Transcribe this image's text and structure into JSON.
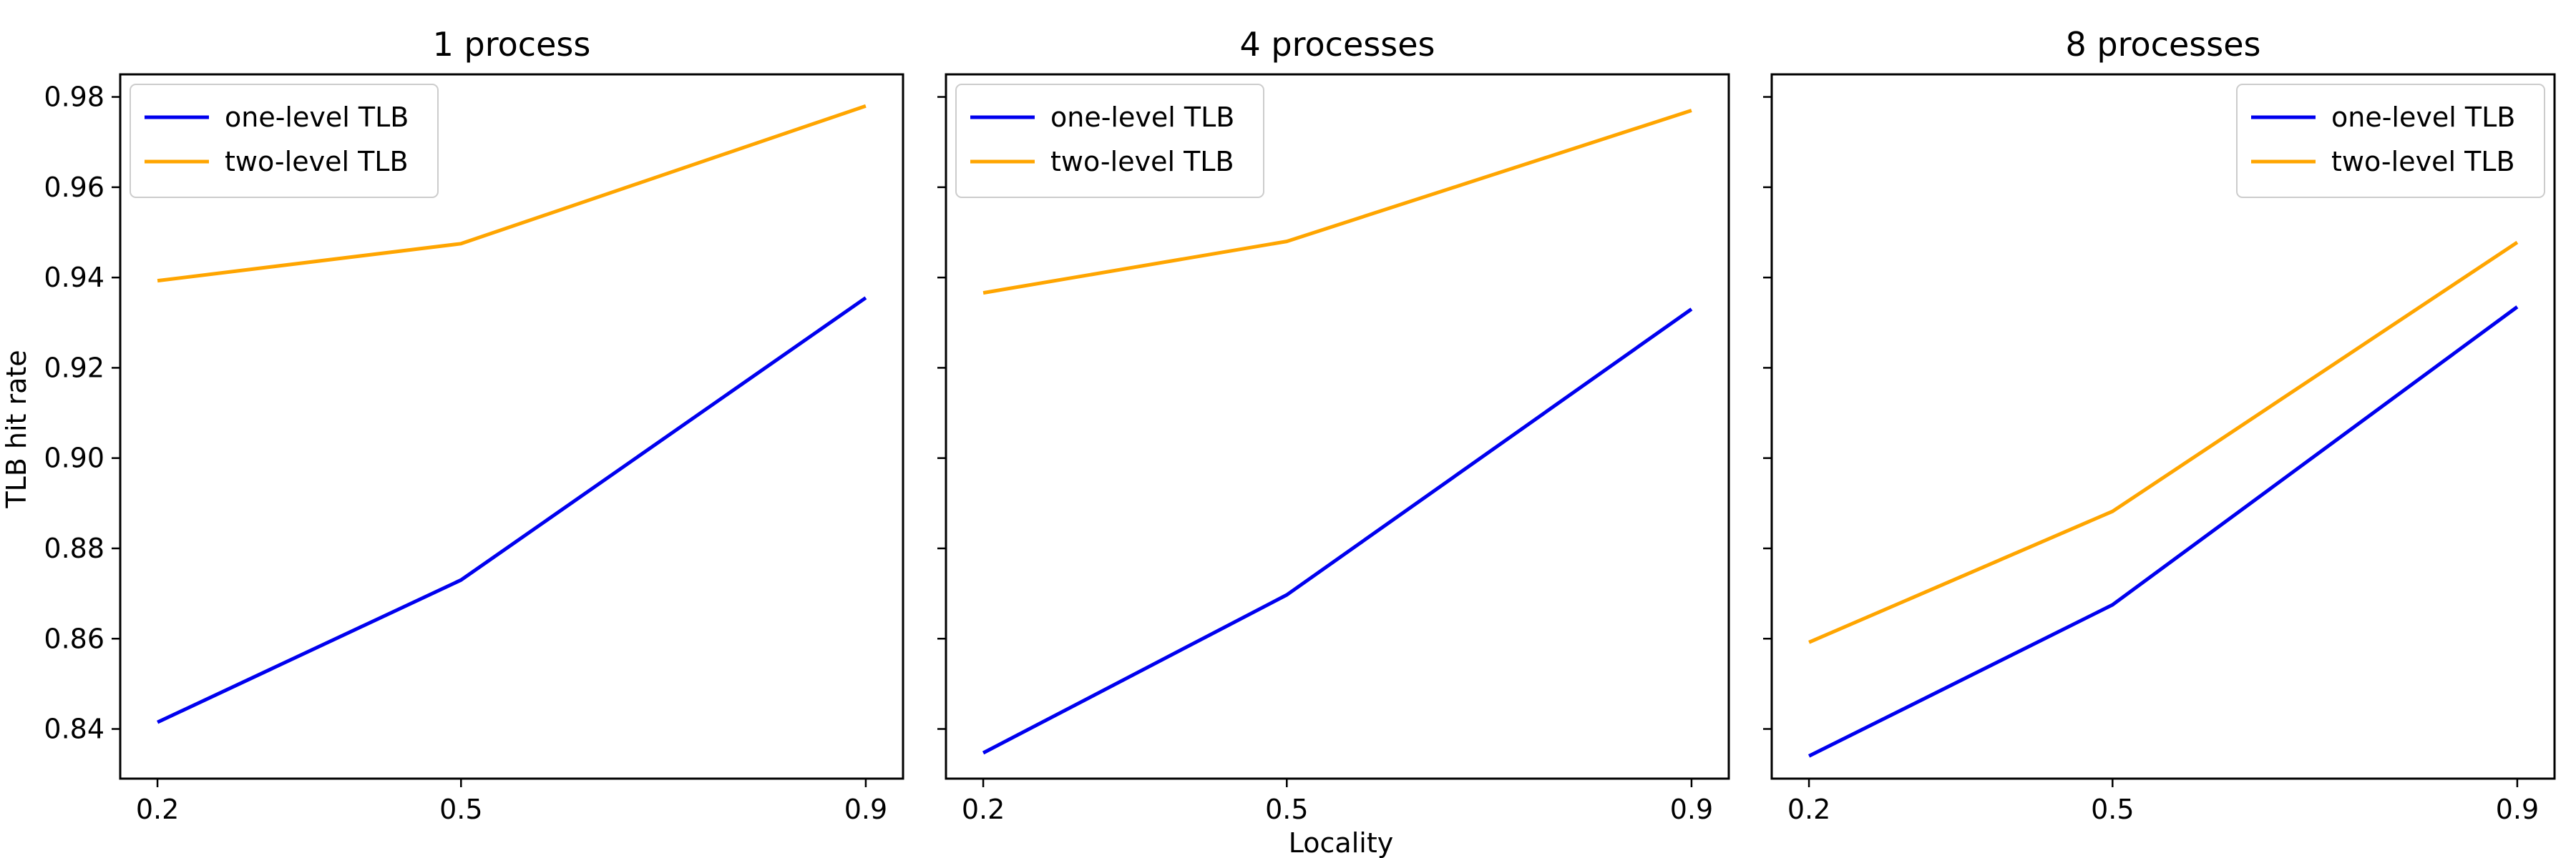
{
  "figure": {
    "ylabel": "TLB hit rate",
    "xlabel": "Locality"
  },
  "colors": {
    "one_level": "#0000ee",
    "two_level": "#ffa500"
  },
  "chart_data": [
    {
      "type": "line",
      "title": "1 process",
      "x": [
        0.2,
        0.5,
        0.9
      ],
      "x_tick_labels": [
        "0.2",
        "0.5",
        "0.9"
      ],
      "ylim": [
        0.829,
        0.985
      ],
      "y_ticks": [
        0.84,
        0.86,
        0.88,
        0.9,
        0.92,
        0.94,
        0.96,
        0.98
      ],
      "y_tick_labels": [
        "0.84",
        "0.86",
        "0.88",
        "0.90",
        "0.92",
        "0.94",
        "0.96",
        "0.98"
      ],
      "show_y_tick_labels": true,
      "legend_position": "top-left",
      "series": [
        {
          "name": "one-level TLB",
          "color": "#0000ee",
          "values": [
            0.8415,
            0.873,
            0.9355
          ]
        },
        {
          "name": "two-level TLB",
          "color": "#ffa500",
          "values": [
            0.9393,
            0.9475,
            0.978
          ]
        }
      ]
    },
    {
      "type": "line",
      "title": "4 processes",
      "x": [
        0.2,
        0.5,
        0.9
      ],
      "x_tick_labels": [
        "0.2",
        "0.5",
        "0.9"
      ],
      "ylim": [
        0.829,
        0.985
      ],
      "y_ticks": [
        0.84,
        0.86,
        0.88,
        0.9,
        0.92,
        0.94,
        0.96,
        0.98
      ],
      "y_tick_labels": [
        "0.84",
        "0.86",
        "0.88",
        "0.90",
        "0.92",
        "0.94",
        "0.96",
        "0.98"
      ],
      "show_y_tick_labels": false,
      "legend_position": "top-left",
      "series": [
        {
          "name": "one-level TLB",
          "color": "#0000ee",
          "values": [
            0.8347,
            0.8697,
            0.933
          ]
        },
        {
          "name": "two-level TLB",
          "color": "#ffa500",
          "values": [
            0.9366,
            0.948,
            0.977
          ]
        }
      ]
    },
    {
      "type": "line",
      "title": "8 processes",
      "x": [
        0.2,
        0.5,
        0.9
      ],
      "x_tick_labels": [
        "0.2",
        "0.5",
        "0.9"
      ],
      "ylim": [
        0.829,
        0.985
      ],
      "y_ticks": [
        0.84,
        0.86,
        0.88,
        0.9,
        0.92,
        0.94,
        0.96,
        0.98
      ],
      "y_tick_labels": [
        "0.84",
        "0.86",
        "0.88",
        "0.90",
        "0.92",
        "0.94",
        "0.96",
        "0.98"
      ],
      "show_y_tick_labels": false,
      "legend_position": "top-right",
      "series": [
        {
          "name": "one-level TLB",
          "color": "#0000ee",
          "values": [
            0.834,
            0.8675,
            0.9335
          ]
        },
        {
          "name": "two-level TLB",
          "color": "#ffa500",
          "values": [
            0.8592,
            0.8882,
            0.9478
          ]
        }
      ]
    }
  ]
}
